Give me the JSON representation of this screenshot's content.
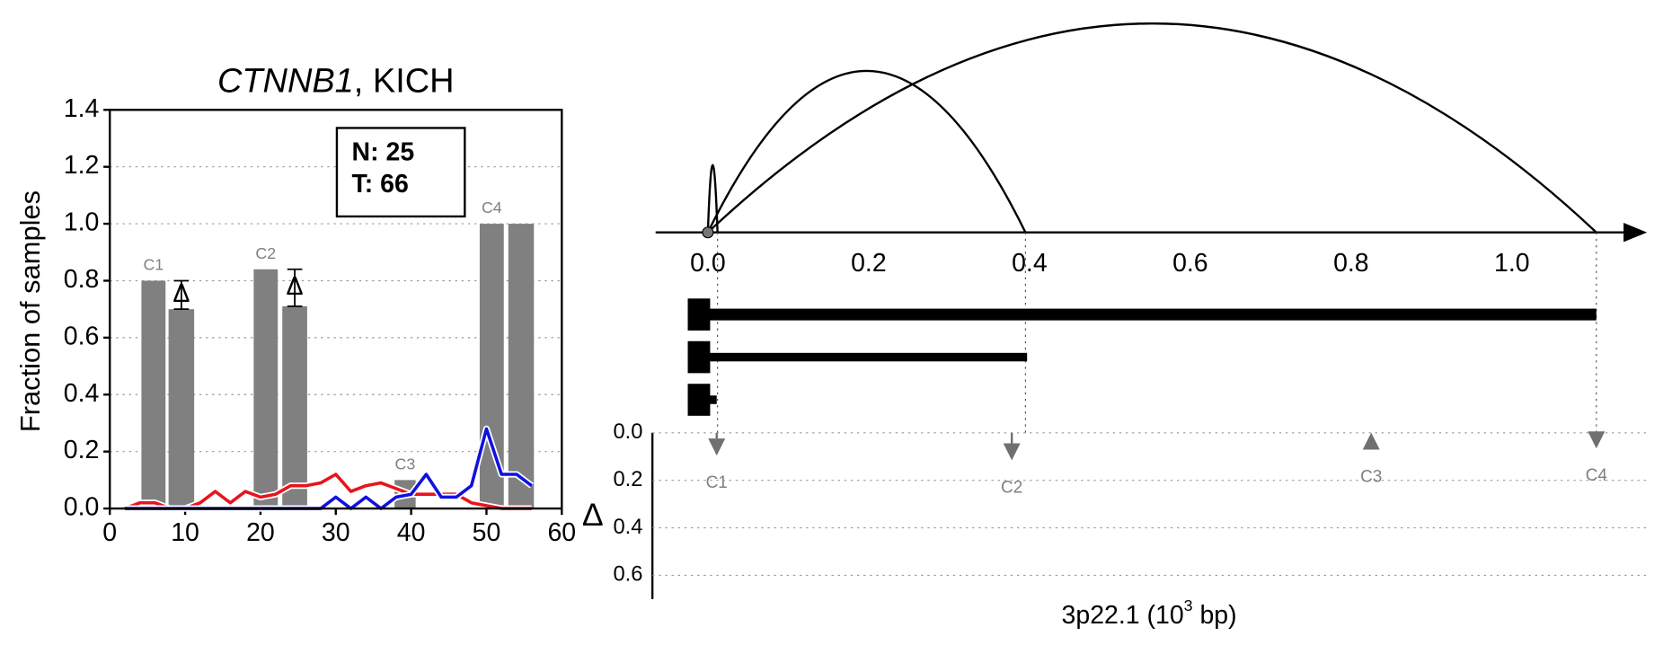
{
  "chart_data": [
    {
      "type": "bar_line",
      "title": [
        "CTNNB1",
        ", KICH"
      ],
      "ylabel": "Fraction of samples",
      "xlim": [
        0,
        60
      ],
      "xticks": [
        0,
        10,
        20,
        30,
        40,
        50,
        60
      ],
      "ylim": [
        0,
        1.4
      ],
      "yticks": [
        {
          "value": 0,
          "label": "0.0"
        },
        0.2,
        0.4,
        0.6,
        0.8,
        {
          "value": 1,
          "label": "1.0"
        },
        1.2,
        1.4
      ],
      "grid": true,
      "bars": {
        "color": "#808080",
        "x_left": [
          4.2,
          7.8,
          19.1,
          22.9,
          37.8,
          49.1,
          52.9
        ],
        "x_right": [
          7.4,
          11.2,
          22.3,
          26.2,
          40.6,
          52.3,
          56.3
        ],
        "values": [
          0.8,
          0.7,
          0.84,
          0.71,
          0.1,
          1.0,
          1.0
        ]
      },
      "cluster_labels": [
        "C1",
        "C2",
        "C3",
        "C4"
      ],
      "delta_label": "Δ",
      "x": [
        2,
        4,
        6,
        8,
        10,
        12,
        14,
        16,
        18,
        20,
        22,
        24,
        26,
        28,
        30,
        32,
        34,
        36,
        38,
        40,
        42,
        44,
        46,
        48,
        50,
        52,
        54,
        56
      ],
      "series": [
        {
          "color": "#e8141c",
          "values": [
            0,
            0.02,
            0.02,
            0,
            0,
            0.02,
            0.06,
            0.02,
            0.06,
            0.04,
            0.05,
            0.08,
            0.08,
            0.09,
            0.12,
            0.06,
            0.08,
            0.09,
            0.07,
            0.05,
            0.05,
            0.05,
            0.05,
            0.02,
            0.01,
            0,
            0,
            0
          ]
        },
        {
          "color": "#1010e0",
          "values": [
            0,
            0,
            0,
            0,
            0,
            0,
            0,
            0,
            0,
            0,
            0,
            0,
            0,
            0,
            0.04,
            0,
            0.04,
            0,
            0.04,
            0.05,
            0.12,
            0.04,
            0.04,
            0.08,
            0.28,
            0.12,
            0.12,
            0.08
          ]
        }
      ],
      "box_lines": [
        "N: 25",
        "T: 66"
      ]
    },
    {
      "type": "arc",
      "xlabel": [
        "3p22.1 (10",
        "3",
        " bp)"
      ],
      "xlim": [
        -0.065,
        1.168
      ],
      "xticks": [
        {
          "value": 0,
          "label": "0.0"
        },
        0.2,
        0.4,
        0.6,
        0.8,
        {
          "value": 1,
          "label": "1.0"
        }
      ],
      "arcs": {
        "start": [
          0,
          0,
          0
        ],
        "end": [
          0.012,
          0.395,
          1.105
        ]
      },
      "transcripts": {
        "start": [
          -0.025,
          -0.025,
          -0.025
        ],
        "end": [
          1.105,
          0.397,
          0.011
        ]
      },
      "delta": {
        "ylabel": "Δ",
        "ylim": [
          0,
          0.7
        ],
        "yticks": [
          {
            "value": 0,
            "label": "0.0"
          },
          0.2,
          0.4,
          0.6
        ],
        "grid": true,
        "labels": [
          "C1",
          "C2",
          "C3",
          "C4"
        ],
        "x": [
          0.011,
          0.378,
          0.825,
          1.105
        ],
        "values": [
          0.06,
          0.08,
          0.035,
          0.03
        ],
        "direction": [
          "down",
          "down",
          "up",
          "down"
        ],
        "color": "#707070"
      }
    }
  ]
}
